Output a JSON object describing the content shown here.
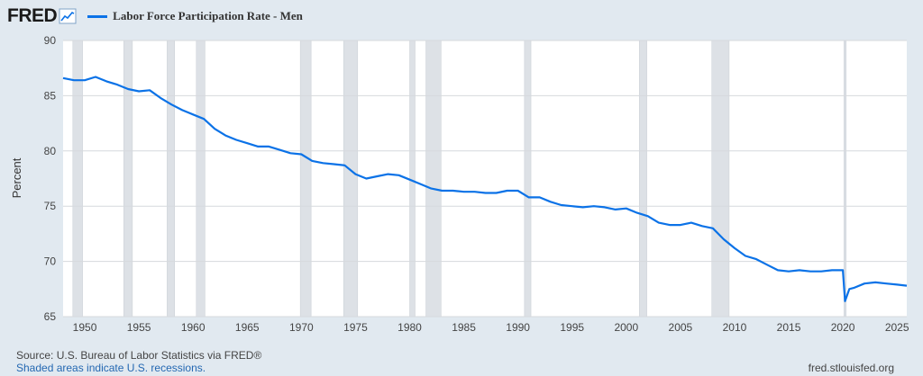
{
  "header": {
    "logo_text": "FRED",
    "logo_icon": "line-chart-icon"
  },
  "footer": {
    "source": "Source: U.S. Bureau of Labor Statistics via FRED®",
    "notes": "Shaded areas indicate U.S. recessions.",
    "url": "fred.stlouisfed.org"
  },
  "colors": {
    "series": "#0b72e7",
    "plot_bg": "#ffffff",
    "page_bg": "#e1e9f0",
    "recession": "#dde1e6",
    "grid": "#d6d9dd"
  },
  "chart_data": {
    "type": "line",
    "title": "",
    "xlabel": "",
    "ylabel": "Percent",
    "xlim": [
      1948.0,
      2025.9
    ],
    "ylim": [
      65,
      90
    ],
    "yticks": [
      65,
      70,
      75,
      80,
      85,
      90
    ],
    "xticks": [
      1950,
      1955,
      1960,
      1965,
      1970,
      1975,
      1980,
      1985,
      1990,
      1995,
      2000,
      2005,
      2010,
      2015,
      2020,
      2025
    ],
    "grid": "horizontal",
    "legend_position": "top-left",
    "recessions": [
      [
        1948.9,
        1949.8
      ],
      [
        1953.6,
        1954.4
      ],
      [
        1957.6,
        1958.3
      ],
      [
        1960.3,
        1961.1
      ],
      [
        1969.9,
        1970.9
      ],
      [
        1973.9,
        1975.2
      ],
      [
        1980.0,
        1980.5
      ],
      [
        1981.5,
        1982.9
      ],
      [
        1990.6,
        1991.2
      ],
      [
        2001.2,
        2001.9
      ],
      [
        2007.9,
        2009.5
      ],
      [
        2020.1,
        2020.3
      ]
    ],
    "series": [
      {
        "name": "Labor Force Participation Rate - Men",
        "points": [
          [
            1948.0,
            86.6
          ],
          [
            1949.0,
            86.4
          ],
          [
            1950.0,
            86.4
          ],
          [
            1951.0,
            86.7
          ],
          [
            1952.0,
            86.3
          ],
          [
            1953.0,
            86.0
          ],
          [
            1954.0,
            85.6
          ],
          [
            1955.0,
            85.4
          ],
          [
            1956.0,
            85.5
          ],
          [
            1957.0,
            84.8
          ],
          [
            1958.0,
            84.2
          ],
          [
            1959.0,
            83.7
          ],
          [
            1960.0,
            83.3
          ],
          [
            1961.0,
            82.9
          ],
          [
            1962.0,
            82.0
          ],
          [
            1963.0,
            81.4
          ],
          [
            1964.0,
            81.0
          ],
          [
            1965.0,
            80.7
          ],
          [
            1966.0,
            80.4
          ],
          [
            1967.0,
            80.4
          ],
          [
            1968.0,
            80.1
          ],
          [
            1969.0,
            79.8
          ],
          [
            1970.0,
            79.7
          ],
          [
            1971.0,
            79.1
          ],
          [
            1972.0,
            78.9
          ],
          [
            1973.0,
            78.8
          ],
          [
            1974.0,
            78.7
          ],
          [
            1975.0,
            77.9
          ],
          [
            1976.0,
            77.5
          ],
          [
            1977.0,
            77.7
          ],
          [
            1978.0,
            77.9
          ],
          [
            1979.0,
            77.8
          ],
          [
            1980.0,
            77.4
          ],
          [
            1981.0,
            77.0
          ],
          [
            1982.0,
            76.6
          ],
          [
            1983.0,
            76.4
          ],
          [
            1984.0,
            76.4
          ],
          [
            1985.0,
            76.3
          ],
          [
            1986.0,
            76.3
          ],
          [
            1987.0,
            76.2
          ],
          [
            1988.0,
            76.2
          ],
          [
            1989.0,
            76.4
          ],
          [
            1990.0,
            76.4
          ],
          [
            1991.0,
            75.8
          ],
          [
            1992.0,
            75.8
          ],
          [
            1993.0,
            75.4
          ],
          [
            1994.0,
            75.1
          ],
          [
            1995.0,
            75.0
          ],
          [
            1996.0,
            74.9
          ],
          [
            1997.0,
            75.0
          ],
          [
            1998.0,
            74.9
          ],
          [
            1999.0,
            74.7
          ],
          [
            2000.0,
            74.8
          ],
          [
            2001.0,
            74.4
          ],
          [
            2002.0,
            74.1
          ],
          [
            2003.0,
            73.5
          ],
          [
            2004.0,
            73.3
          ],
          [
            2005.0,
            73.3
          ],
          [
            2006.0,
            73.5
          ],
          [
            2007.0,
            73.2
          ],
          [
            2008.0,
            73.0
          ],
          [
            2009.0,
            72.0
          ],
          [
            2010.0,
            71.2
          ],
          [
            2011.0,
            70.5
          ],
          [
            2012.0,
            70.2
          ],
          [
            2013.0,
            69.7
          ],
          [
            2014.0,
            69.2
          ],
          [
            2015.0,
            69.1
          ],
          [
            2016.0,
            69.2
          ],
          [
            2017.0,
            69.1
          ],
          [
            2018.0,
            69.1
          ],
          [
            2019.0,
            69.2
          ],
          [
            2020.0,
            69.2
          ],
          [
            2020.2,
            66.4
          ],
          [
            2020.6,
            67.5
          ],
          [
            2021.0,
            67.6
          ],
          [
            2022.0,
            68.0
          ],
          [
            2023.0,
            68.1
          ],
          [
            2024.0,
            68.0
          ],
          [
            2025.0,
            67.9
          ],
          [
            2025.9,
            67.8
          ]
        ]
      }
    ]
  }
}
